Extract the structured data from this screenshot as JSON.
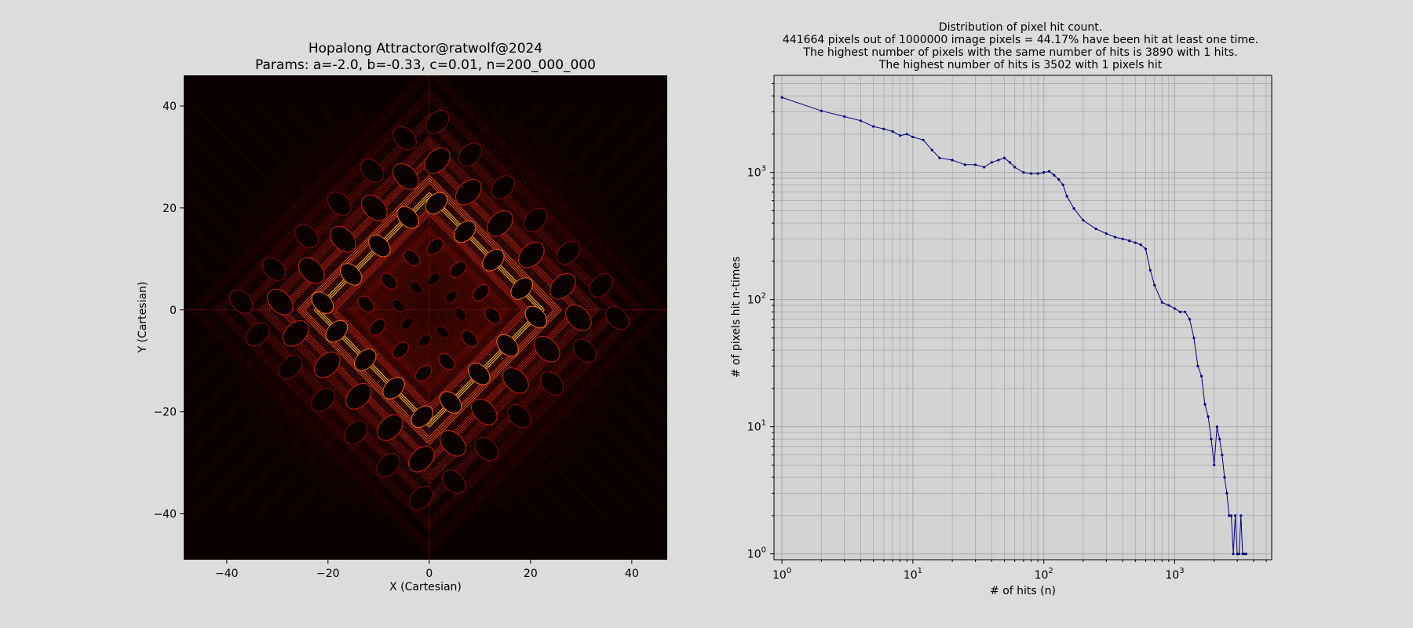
{
  "chart_data": [
    {
      "type": "heatmap",
      "title": "Hopalong Attractor@ratwolf@2024",
      "subtitle": "Params: a=-2.0, b=-0.33, c=0.01, n=200_000_000",
      "xlabel": "X (Cartesian)",
      "ylabel": "Y (Cartesian)",
      "xlim": [
        -48.5,
        47
      ],
      "ylim": [
        -49,
        46
      ],
      "xticks": [
        -40,
        -20,
        0,
        20,
        40
      ],
      "yticks": [
        -40,
        -20,
        0,
        20,
        40
      ],
      "xtick_labels": [
        "−40",
        "−20",
        "0",
        "20",
        "40"
      ],
      "ytick_labels": [
        "−40",
        "−20",
        "0",
        "20",
        "40"
      ],
      "colormap": "hot",
      "background_color": "#0a0000"
    },
    {
      "type": "line",
      "title_lines": [
        "Distribution of pixel hit count.",
        "441664 pixels out of 1000000 image pixels = 44.17% have been hit at least one time.",
        "The highest number of pixels with the same number of hits is 3890 with 1 hits.",
        "The highest number of hits is 3502 with 1 pixels hit"
      ],
      "xlabel": "# of hits (n)",
      "ylabel": "# of pixels hit n-times",
      "xscale": "log",
      "yscale": "log",
      "xlim": [
        0.87,
        5500
      ],
      "ylim": [
        0.9,
        5800
      ],
      "xticks": [
        1,
        10,
        100,
        1000
      ],
      "yticks": [
        1,
        10,
        100,
        1000
      ],
      "xtick_labels": [
        {
          "base": "10",
          "exp": "0"
        },
        {
          "base": "10",
          "exp": "1"
        },
        {
          "base": "10",
          "exp": "2"
        },
        {
          "base": "10",
          "exp": "3"
        }
      ],
      "ytick_labels": [
        {
          "base": "10",
          "exp": "0"
        },
        {
          "base": "10",
          "exp": "1"
        },
        {
          "base": "10",
          "exp": "2"
        },
        {
          "base": "10",
          "exp": "3"
        }
      ],
      "grid": true,
      "series": [
        {
          "color": "#000080",
          "x": [
            1,
            2,
            3,
            4,
            5,
            6,
            7,
            8,
            9,
            10,
            12,
            14,
            16,
            20,
            25,
            30,
            35,
            40,
            45,
            50,
            55,
            60,
            70,
            80,
            90,
            100,
            110,
            120,
            130,
            140,
            150,
            170,
            200,
            250,
            300,
            350,
            400,
            450,
            500,
            550,
            600,
            650,
            700,
            800,
            900,
            1000,
            1100,
            1200,
            1300,
            1400,
            1500,
            1600,
            1700,
            1800,
            1900,
            2000,
            2100,
            2200,
            2300,
            2400,
            2500,
            2600,
            2700,
            2800,
            2900,
            3000,
            3100,
            3200,
            3300,
            3400,
            3502
          ],
          "y": [
            3890,
            3050,
            2750,
            2550,
            2300,
            2200,
            2100,
            1950,
            2000,
            1900,
            1800,
            1500,
            1300,
            1250,
            1150,
            1150,
            1100,
            1200,
            1250,
            1300,
            1200,
            1100,
            1000,
            980,
            980,
            1000,
            1020,
            950,
            880,
            800,
            650,
            520,
            420,
            360,
            330,
            310,
            300,
            290,
            280,
            270,
            250,
            170,
            130,
            95,
            90,
            85,
            80,
            80,
            70,
            50,
            30,
            25,
            15,
            12,
            8,
            5,
            10,
            8,
            6,
            4,
            3,
            2,
            2,
            1,
            2,
            1,
            1,
            2,
            1,
            1,
            1
          ]
        }
      ]
    }
  ]
}
